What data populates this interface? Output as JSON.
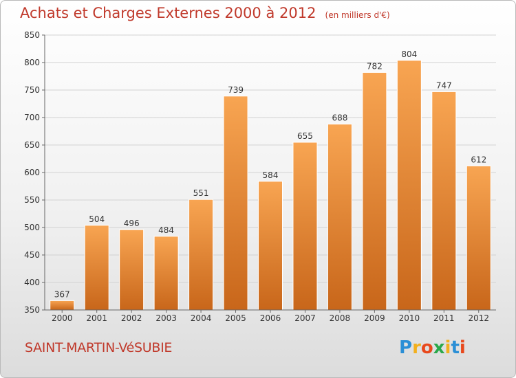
{
  "chart_data": {
    "type": "bar",
    "title": "Achats et Charges Externes 2000 à 2012",
    "unit_note": "(en milliers d'€)",
    "categories": [
      "2000",
      "2001",
      "2002",
      "2003",
      "2004",
      "2005",
      "2006",
      "2007",
      "2008",
      "2009",
      "2010",
      "2011",
      "2012"
    ],
    "values": [
      367,
      504,
      496,
      484,
      551,
      739,
      584,
      655,
      688,
      782,
      804,
      747,
      612
    ],
    "ylim": [
      350,
      850
    ],
    "yticks": [
      350,
      400,
      450,
      500,
      550,
      600,
      650,
      700,
      750,
      800,
      850
    ],
    "grid": true,
    "bar_color": "#f0933f"
  },
  "commune": "SAINT-MARTIN-VéSUBIE",
  "logo": {
    "text": "Proxiti",
    "letters": [
      "P",
      "r",
      "o",
      "x",
      "i",
      "t",
      "i"
    ],
    "colors": [
      "#2b8fd6",
      "#f2b01e",
      "#e8481c",
      "#2ba84a",
      "#f2b01e",
      "#2b8fd6",
      "#e8481c"
    ]
  }
}
